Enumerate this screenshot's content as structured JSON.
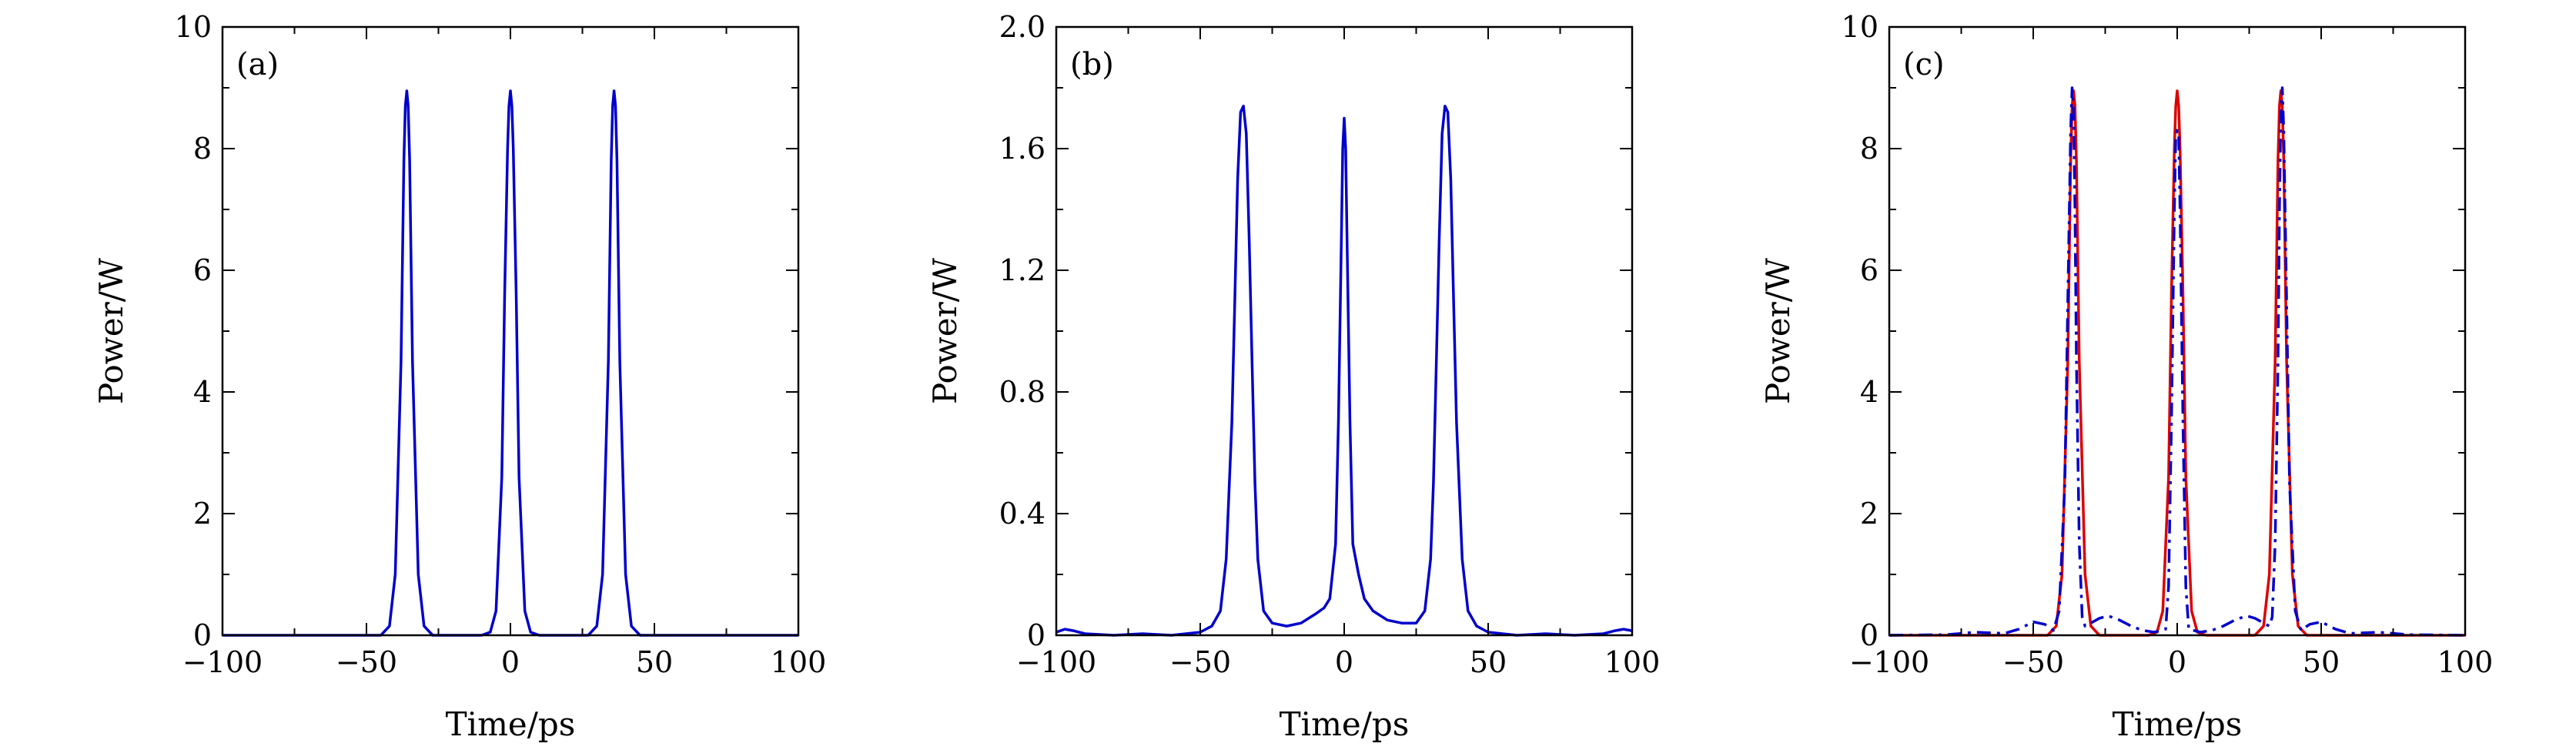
{
  "chart_data": [
    {
      "type": "line",
      "panel_label": "(a)",
      "xlabel": "Time/ps",
      "ylabel": "Power/W",
      "xlim": [
        -100,
        100
      ],
      "ylim": [
        0,
        10
      ],
      "xticks": [
        -100,
        -50,
        0,
        50,
        100
      ],
      "xtick_labels": [
        "−100",
        "−50",
        "0",
        "50",
        "100"
      ],
      "yticks": [
        0,
        2,
        4,
        6,
        8,
        10
      ],
      "ytick_labels": [
        "0",
        "2",
        "4",
        "6",
        "8",
        "10"
      ],
      "grid": false,
      "series": [
        {
          "color": "#0000cc",
          "style": "solid",
          "x": [
            -100,
            -45,
            -42,
            -40,
            -38,
            -37,
            -36.5,
            -36,
            -35.5,
            -35,
            -34,
            -32,
            -30,
            -27,
            -10,
            -7,
            -5,
            -3,
            -2,
            -1,
            -0.5,
            0,
            0.5,
            1,
            2,
            3,
            5,
            7,
            10,
            27,
            30,
            32,
            34,
            35,
            35.5,
            36,
            36.5,
            37,
            38,
            40,
            42,
            45,
            100
          ],
          "y": [
            0,
            0,
            0.15,
            1.0,
            4.5,
            7.8,
            8.7,
            8.95,
            8.7,
            7.8,
            4.5,
            1.0,
            0.15,
            0,
            0,
            0.05,
            0.4,
            2.6,
            5.6,
            8.0,
            8.7,
            8.95,
            8.7,
            8.0,
            5.6,
            2.6,
            0.4,
            0.05,
            0,
            0,
            0.15,
            1.0,
            4.5,
            7.8,
            8.7,
            8.95,
            8.7,
            7.8,
            4.5,
            1.0,
            0.15,
            0,
            0
          ]
        }
      ]
    },
    {
      "type": "line",
      "panel_label": "(b)",
      "xlabel": "Time/ps",
      "ylabel": "Power/W",
      "xlim": [
        -100,
        100
      ],
      "ylim": [
        0,
        2.0
      ],
      "xticks": [
        -100,
        -50,
        0,
        50,
        100
      ],
      "xtick_labels": [
        "−100",
        "−50",
        "0",
        "50",
        "100"
      ],
      "yticks": [
        0,
        0.4,
        0.8,
        1.2,
        1.6,
        2.0
      ],
      "ytick_labels": [
        "0",
        "0.4",
        "0.8",
        "1.2",
        "1.6",
        "2.0"
      ],
      "grid": false,
      "series": [
        {
          "color": "#0000cc",
          "style": "solid",
          "x": [
            -100,
            -97,
            -94,
            -90,
            -80,
            -70,
            -60,
            -50,
            -46,
            -43,
            -41,
            -39,
            -38,
            -37,
            -36,
            -35,
            -34,
            -33,
            -32,
            -31,
            -30,
            -28,
            -25,
            -20,
            -15,
            -10,
            -7,
            -5,
            -3,
            -2,
            -1,
            -0.5,
            0,
            0.5,
            1,
            2,
            3,
            5,
            7,
            10,
            15,
            20,
            25,
            28,
            30,
            31,
            32,
            33,
            34,
            35,
            36,
            37,
            38,
            39,
            41,
            43,
            46,
            50,
            60,
            70,
            80,
            90,
            94,
            97,
            100
          ],
          "y": [
            0.01,
            0.02,
            0.015,
            0.005,
            0.0,
            0.005,
            0.0,
            0.01,
            0.03,
            0.08,
            0.25,
            0.7,
            1.1,
            1.5,
            1.72,
            1.74,
            1.65,
            1.3,
            0.9,
            0.5,
            0.25,
            0.08,
            0.04,
            0.03,
            0.04,
            0.07,
            0.09,
            0.12,
            0.3,
            0.7,
            1.3,
            1.6,
            1.7,
            1.6,
            1.3,
            0.7,
            0.3,
            0.2,
            0.12,
            0.08,
            0.05,
            0.04,
            0.04,
            0.08,
            0.25,
            0.5,
            0.9,
            1.3,
            1.65,
            1.74,
            1.72,
            1.5,
            1.1,
            0.7,
            0.25,
            0.08,
            0.03,
            0.01,
            0.0,
            0.005,
            0.0,
            0.005,
            0.015,
            0.02,
            0.015
          ]
        }
      ]
    },
    {
      "type": "line",
      "panel_label": "(c)",
      "xlabel": "Time/ps",
      "ylabel": "Power/W",
      "xlim": [
        -100,
        100
      ],
      "ylim": [
        0,
        10
      ],
      "xticks": [
        -100,
        -50,
        0,
        50,
        100
      ],
      "xtick_labels": [
        "−100",
        "−50",
        "0",
        "50",
        "100"
      ],
      "yticks": [
        0,
        2,
        4,
        6,
        8,
        10
      ],
      "ytick_labels": [
        "0",
        "2",
        "4",
        "6",
        "8",
        "10"
      ],
      "grid": false,
      "series": [
        {
          "color": "#dd0000",
          "style": "solid",
          "x": [
            -100,
            -45,
            -42,
            -40,
            -38,
            -37,
            -36.5,
            -36,
            -35.5,
            -35,
            -34,
            -32,
            -30,
            -27,
            -10,
            -7,
            -5,
            -3,
            -2,
            -1,
            -0.5,
            0,
            0.5,
            1,
            2,
            3,
            5,
            7,
            10,
            27,
            30,
            32,
            34,
            35,
            35.5,
            36,
            36.5,
            37,
            38,
            40,
            42,
            45,
            100
          ],
          "y": [
            0,
            0,
            0.15,
            1.0,
            4.5,
            7.8,
            8.7,
            8.95,
            8.7,
            7.8,
            4.5,
            1.0,
            0.15,
            0,
            0,
            0.05,
            0.4,
            2.6,
            5.6,
            8.0,
            8.7,
            8.95,
            8.7,
            8.0,
            5.6,
            2.6,
            0.4,
            0.05,
            0,
            0,
            0.15,
            1.0,
            4.5,
            7.8,
            8.7,
            8.95,
            8.7,
            7.8,
            4.5,
            1.0,
            0.15,
            0,
            0
          ]
        },
        {
          "color": "#0000cc",
          "style": "dash-dot",
          "x": [
            -100,
            -80,
            -70,
            -60,
            -55,
            -50,
            -46,
            -43,
            -41,
            -39,
            -38,
            -37,
            -36.5,
            -36,
            -35.5,
            -35,
            -34,
            -33,
            -32,
            -30,
            -27,
            -24,
            -20,
            -16,
            -12,
            -8,
            -4,
            -3,
            -2,
            -1,
            -0.5,
            0,
            0.5,
            1,
            2,
            3,
            4,
            8,
            12,
            16,
            20,
            24,
            27,
            30,
            32,
            33,
            34,
            35,
            35.5,
            36,
            36.5,
            37,
            38,
            39,
            41,
            43,
            46,
            50,
            55,
            60,
            70,
            80,
            100
          ],
          "y": [
            0,
            0.01,
            0.05,
            0.03,
            0.1,
            0.22,
            0.18,
            0.08,
            0.4,
            2.5,
            5.5,
            8.3,
            9.0,
            8.6,
            7.0,
            4.5,
            1.5,
            0.3,
            0.15,
            0.2,
            0.28,
            0.32,
            0.25,
            0.15,
            0.08,
            0.05,
            0.1,
            0.8,
            3.5,
            7.0,
            8.2,
            8.3,
            8.2,
            7.0,
            3.5,
            0.8,
            0.1,
            0.05,
            0.08,
            0.15,
            0.25,
            0.32,
            0.28,
            0.2,
            0.15,
            0.3,
            1.5,
            4.5,
            7.0,
            8.6,
            9.0,
            8.3,
            5.5,
            2.5,
            0.4,
            0.08,
            0.18,
            0.22,
            0.1,
            0.03,
            0.05,
            0.01,
            0
          ]
        }
      ]
    }
  ]
}
